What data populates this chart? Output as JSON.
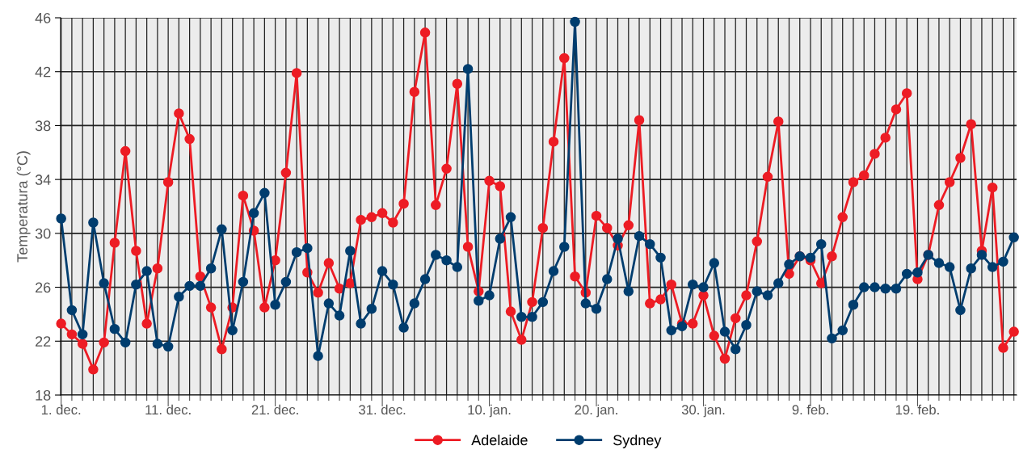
{
  "chart_data": {
    "type": "line",
    "ylabel": "Temperatura (°C)",
    "categories": [
      "1. dec.",
      null,
      null,
      null,
      null,
      null,
      null,
      null,
      null,
      null,
      "11. dec.",
      null,
      null,
      null,
      null,
      null,
      null,
      null,
      null,
      null,
      "21. dec.",
      null,
      null,
      null,
      null,
      null,
      null,
      null,
      null,
      null,
      "31. dec.",
      null,
      null,
      null,
      null,
      null,
      null,
      null,
      null,
      null,
      "10. jan.",
      null,
      null,
      null,
      null,
      null,
      null,
      null,
      null,
      null,
      "20. jan.",
      null,
      null,
      null,
      null,
      null,
      null,
      null,
      null,
      null,
      "30. jan.",
      null,
      null,
      null,
      null,
      null,
      null,
      null,
      null,
      null,
      "9. feb.",
      null,
      null,
      null,
      null,
      null,
      null,
      null,
      null,
      null,
      "19. feb.",
      null,
      null,
      null,
      null,
      null,
      null,
      null,
      null,
      null
    ],
    "series": [
      {
        "name": "Adelaide",
        "color": "#ed1c24",
        "values": [
          23.3,
          22.5,
          21.8,
          19.9,
          21.9,
          29.3,
          36.1,
          28.7,
          23.3,
          27.4,
          33.8,
          38.9,
          37.0,
          26.8,
          24.5,
          21.4,
          24.5,
          32.8,
          30.2,
          24.5,
          28.0,
          34.5,
          41.9,
          27.1,
          25.6,
          27.8,
          25.9,
          26.3,
          31.0,
          31.2,
          31.5,
          30.8,
          32.2,
          40.5,
          44.9,
          32.1,
          34.8,
          41.1,
          29.0,
          25.7,
          33.9,
          33.5,
          24.2,
          22.1,
          24.9,
          30.4,
          36.8,
          43.0,
          26.8,
          25.6,
          31.3,
          30.4,
          29.1,
          30.6,
          38.4,
          24.8,
          25.1,
          26.2,
          23.3,
          23.3,
          25.4,
          22.4,
          20.7,
          23.7,
          25.4,
          29.4,
          34.2,
          38.3,
          27.0,
          28.3,
          28.0,
          26.3,
          28.3,
          31.2,
          33.8,
          34.3,
          35.9,
          37.1,
          39.2,
          40.4,
          26.6,
          28.4,
          32.1,
          33.8,
          35.6,
          38.1,
          28.7,
          33.4,
          21.5,
          22.7
        ]
      },
      {
        "name": "Sydney",
        "color": "#003d6e",
        "values": [
          31.1,
          24.3,
          22.5,
          30.8,
          26.3,
          22.9,
          21.9,
          26.2,
          27.2,
          21.8,
          21.6,
          25.3,
          26.1,
          26.1,
          27.4,
          30.3,
          22.8,
          26.4,
          31.5,
          33.0,
          24.7,
          26.4,
          28.6,
          28.9,
          20.9,
          24.8,
          23.9,
          28.7,
          23.3,
          24.4,
          27.2,
          26.2,
          23.0,
          24.8,
          26.6,
          28.4,
          28.0,
          27.5,
          42.2,
          25.0,
          25.4,
          29.6,
          31.2,
          23.8,
          23.8,
          24.9,
          27.2,
          29.0,
          45.7,
          24.8,
          24.4,
          26.6,
          29.6,
          25.7,
          29.8,
          29.2,
          28.2,
          22.8,
          23.1,
          26.2,
          26.0,
          27.8,
          22.7,
          21.4,
          23.2,
          25.7,
          25.4,
          26.3,
          27.7,
          28.3,
          28.2,
          29.2,
          22.2,
          22.8,
          24.7,
          26.0,
          26.0,
          25.9,
          25.9,
          27.0,
          27.1,
          28.4,
          27.8,
          27.5,
          24.3,
          27.4,
          28.4,
          27.5,
          27.9,
          29.7
        ]
      }
    ],
    "ylim": [
      18,
      46
    ],
    "yticks": [
      18,
      22,
      26,
      30,
      34,
      38,
      42,
      46
    ],
    "grid": true,
    "legend": "bottom",
    "marker": "circle",
    "line_style": "solid"
  }
}
